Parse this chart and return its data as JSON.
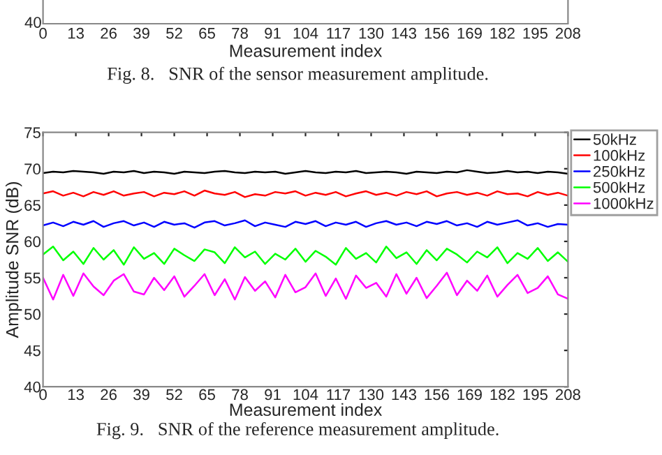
{
  "chart_data": {
    "type": "line",
    "xlabel": "Measurement index",
    "ylabel": "Amplitude SNR (dB)",
    "xlim": [
      0,
      208
    ],
    "xticks": [
      0,
      13,
      26,
      39,
      52,
      65,
      78,
      91,
      104,
      117,
      130,
      143,
      156,
      169,
      182,
      195,
      208
    ],
    "ylim": [
      40,
      75
    ],
    "yticks": [
      40,
      45,
      50,
      55,
      60,
      65,
      70,
      75
    ],
    "legend": "top right",
    "annotations": [
      "40",
      "0",
      "13",
      "26",
      "39",
      "52",
      "65",
      "78",
      "91",
      "104",
      "117",
      "130",
      "143",
      "156",
      "169",
      "182",
      "195",
      "208",
      "Measurement index",
      "Fig. 8.   SNR of the sensor measurement amplitude.",
      "Fig. 9.   SNR of the reference measurement amplitude."
    ],
    "x": [
      0,
      4,
      8,
      12,
      16,
      20,
      24,
      28,
      32,
      36,
      40,
      44,
      48,
      52,
      56,
      60,
      64,
      68,
      72,
      76,
      80,
      84,
      88,
      92,
      96,
      100,
      104,
      108,
      112,
      116,
      120,
      124,
      128,
      132,
      136,
      140,
      144,
      148,
      152,
      156,
      160,
      164,
      168,
      172,
      176,
      180,
      184,
      188,
      192,
      196,
      200,
      204,
      208
    ],
    "series": [
      {
        "name": "50kHz",
        "color": "#000000",
        "values": [
          69.4,
          69.6,
          69.5,
          69.7,
          69.6,
          69.5,
          69.3,
          69.6,
          69.5,
          69.7,
          69.4,
          69.6,
          69.5,
          69.3,
          69.6,
          69.5,
          69.4,
          69.6,
          69.7,
          69.5,
          69.4,
          69.6,
          69.5,
          69.6,
          69.3,
          69.5,
          69.7,
          69.5,
          69.4,
          69.6,
          69.5,
          69.7,
          69.4,
          69.5,
          69.6,
          69.5,
          69.3,
          69.6,
          69.5,
          69.4,
          69.6,
          69.5,
          69.8,
          69.6,
          69.4,
          69.5,
          69.7,
          69.5,
          69.6,
          69.4,
          69.6,
          69.5,
          69.3
        ]
      },
      {
        "name": "100kHz",
        "color": "#ff0000",
        "values": [
          66.6,
          66.9,
          66.3,
          66.7,
          66.2,
          66.8,
          66.4,
          66.9,
          66.3,
          66.6,
          66.8,
          66.2,
          66.7,
          66.5,
          66.9,
          66.3,
          67.0,
          66.6,
          66.4,
          66.8,
          66.1,
          66.5,
          66.3,
          66.8,
          66.6,
          66.9,
          66.3,
          66.7,
          66.4,
          66.8,
          66.2,
          66.6,
          66.9,
          66.4,
          66.7,
          66.3,
          66.8,
          66.5,
          66.9,
          66.2,
          66.6,
          66.8,
          66.4,
          66.7,
          66.3,
          66.9,
          66.5,
          66.6,
          66.2,
          66.8,
          66.4,
          66.7,
          66.3
        ]
      },
      {
        "name": "250kHz",
        "color": "#0000ff",
        "values": [
          62.2,
          62.6,
          62.1,
          62.7,
          62.3,
          62.8,
          62.0,
          62.5,
          62.8,
          62.2,
          62.6,
          62.0,
          62.7,
          62.3,
          62.5,
          61.9,
          62.6,
          62.8,
          62.2,
          62.5,
          62.9,
          62.1,
          62.6,
          62.3,
          62.0,
          62.7,
          62.4,
          62.8,
          62.1,
          62.6,
          62.3,
          62.7,
          62.0,
          62.5,
          62.8,
          62.3,
          62.6,
          62.1,
          62.7,
          62.4,
          62.8,
          62.2,
          62.5,
          62.0,
          62.7,
          62.3,
          62.6,
          62.9,
          62.2,
          62.5,
          62.0,
          62.4,
          62.3
        ]
      },
      {
        "name": "500kHz",
        "color": "#00ff00",
        "values": [
          58.2,
          59.3,
          57.4,
          58.6,
          56.9,
          59.1,
          57.5,
          58.8,
          56.8,
          59.2,
          57.6,
          58.4,
          56.9,
          59.0,
          58.1,
          57.3,
          58.9,
          58.5,
          57.0,
          59.2,
          57.8,
          58.6,
          56.9,
          58.3,
          57.5,
          59.0,
          57.2,
          58.7,
          57.9,
          56.8,
          59.1,
          57.6,
          58.4,
          57.1,
          59.3,
          57.7,
          58.5,
          56.9,
          58.8,
          57.4,
          59.0,
          58.2,
          57.1,
          58.6,
          57.8,
          59.2,
          57.0,
          58.4,
          57.6,
          59.1,
          57.3,
          58.5,
          57.2
        ]
      },
      {
        "name": "1000kHz",
        "color": "#ff00ff",
        "values": [
          55.0,
          52.0,
          55.4,
          52.5,
          55.6,
          53.8,
          52.6,
          54.6,
          55.5,
          53.1,
          52.7,
          55.0,
          53.3,
          55.2,
          52.4,
          53.9,
          55.5,
          52.6,
          54.8,
          52.0,
          55.1,
          53.2,
          54.5,
          52.3,
          55.4,
          53.0,
          53.7,
          55.6,
          52.5,
          54.9,
          52.1,
          55.3,
          53.6,
          54.3,
          52.4,
          55.5,
          52.8,
          55.0,
          52.2,
          53.9,
          55.7,
          52.6,
          54.6,
          53.2,
          55.3,
          52.4,
          54.0,
          55.4,
          52.9,
          53.6,
          55.2,
          52.7,
          52.1
        ]
      }
    ]
  }
}
